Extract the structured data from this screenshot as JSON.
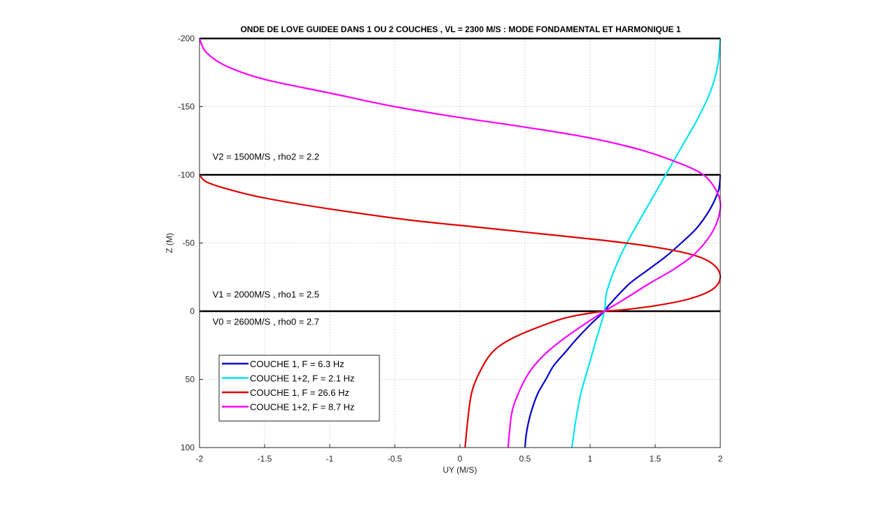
{
  "chart_data": {
    "type": "line",
    "title": "ONDE DE LOVE GUIDEE DANS 1 OU 2 COUCHES , VL =  2300 M/S : MODE FONDAMENTAL ET HARMONIQUE 1",
    "xlabel": "UY (M/S)",
    "ylabel": "Z (M)",
    "xlim": [
      -2,
      2
    ],
    "ylim": [
      -200,
      100
    ],
    "y_reversed": true,
    "grid": true,
    "xticks": [
      -2,
      -1.5,
      -1,
      -0.5,
      0,
      0.5,
      1,
      1.5,
      2
    ],
    "xtick_labels": [
      "-2",
      "-1.5",
      "-1",
      "-0.5",
      "0",
      "0.5",
      "1",
      "1.5",
      "2"
    ],
    "yticks": [
      -200,
      -150,
      -100,
      -50,
      0,
      50,
      100
    ],
    "ytick_labels": [
      "-200",
      "-150",
      "-100",
      "-50",
      "0",
      "50",
      "100"
    ],
    "layer_lines": [
      -200,
      -100,
      0
    ],
    "annotations": [
      {
        "text": "V2 = 1500M/S , rho2 = 2.2",
        "x": -1.9,
        "y": -111
      },
      {
        "text": "V1 = 2000M/S , rho1 = 2.5",
        "x": -1.9,
        "y": -10
      },
      {
        "text": "V0 =  2600M/S , rho0 = 2.7",
        "x": -1.9,
        "y": 10
      }
    ],
    "legend_position": "bottom-left",
    "series": [
      {
        "name": "COUCHE 1,  F = 6.3 Hz",
        "color": "#0000d0",
        "points": [
          [
            2.0,
            -100
          ],
          [
            1.99,
            -90
          ],
          [
            1.95,
            -80
          ],
          [
            1.89,
            -70
          ],
          [
            1.81,
            -60
          ],
          [
            1.7,
            -50
          ],
          [
            1.58,
            -40
          ],
          [
            1.44,
            -30
          ],
          [
            1.3,
            -20
          ],
          [
            1.15,
            -5
          ],
          [
            1.11,
            0
          ],
          [
            1.0,
            10
          ],
          [
            0.9,
            20
          ],
          [
            0.81,
            30
          ],
          [
            0.72,
            40
          ],
          [
            0.66,
            50
          ],
          [
            0.6,
            60
          ],
          [
            0.56,
            70
          ],
          [
            0.53,
            80
          ],
          [
            0.51,
            90
          ],
          [
            0.5,
            100
          ]
        ]
      },
      {
        "name": "COUCHE 1+2,  F = 2.1 Hz",
        "color": "#00e5ee",
        "points": [
          [
            2.0,
            -200
          ],
          [
            1.98,
            -180
          ],
          [
            1.92,
            -160
          ],
          [
            1.82,
            -140
          ],
          [
            1.7,
            -120
          ],
          [
            1.58,
            -100
          ],
          [
            1.46,
            -80
          ],
          [
            1.34,
            -60
          ],
          [
            1.23,
            -40
          ],
          [
            1.13,
            -15
          ],
          [
            1.11,
            0
          ],
          [
            1.05,
            20
          ],
          [
            0.99,
            40
          ],
          [
            0.93,
            60
          ],
          [
            0.89,
            80
          ],
          [
            0.86,
            100
          ]
        ]
      },
      {
        "name": "COUCHE 1, F = 26.6 Hz",
        "color": "#e00000",
        "points": [
          [
            -2.0,
            -100
          ],
          [
            -1.95,
            -95
          ],
          [
            -1.8,
            -90
          ],
          [
            -1.5,
            -83
          ],
          [
            -1.0,
            -75
          ],
          [
            -0.4,
            -67
          ],
          [
            0.1,
            -62
          ],
          [
            0.6,
            -57
          ],
          [
            1.1,
            -52
          ],
          [
            1.5,
            -47
          ],
          [
            1.8,
            -41
          ],
          [
            1.95,
            -34
          ],
          [
            2.0,
            -25
          ],
          [
            1.94,
            -16
          ],
          [
            1.76,
            -9
          ],
          [
            1.5,
            -4
          ],
          [
            1.25,
            -1
          ],
          [
            1.11,
            0
          ],
          [
            0.85,
            4
          ],
          [
            0.65,
            10
          ],
          [
            0.4,
            20
          ],
          [
            0.25,
            30
          ],
          [
            0.15,
            45
          ],
          [
            0.09,
            60
          ],
          [
            0.06,
            80
          ],
          [
            0.04,
            100
          ]
        ]
      },
      {
        "name": "COUCHE 1+2,  F = 8.7 Hz",
        "color": "#ff00ff",
        "points": [
          [
            -2.0,
            -200
          ],
          [
            -1.95,
            -190
          ],
          [
            -1.8,
            -180
          ],
          [
            -1.5,
            -170
          ],
          [
            -1.0,
            -160
          ],
          [
            -0.5,
            -150
          ],
          [
            0.0,
            -142
          ],
          [
            0.5,
            -135
          ],
          [
            1.0,
            -127
          ],
          [
            1.4,
            -118
          ],
          [
            1.7,
            -108
          ],
          [
            1.87,
            -100
          ],
          [
            1.96,
            -90
          ],
          [
            2.0,
            -80
          ],
          [
            1.99,
            -70
          ],
          [
            1.95,
            -60
          ],
          [
            1.88,
            -50
          ],
          [
            1.78,
            -40
          ],
          [
            1.63,
            -30
          ],
          [
            1.45,
            -20
          ],
          [
            1.25,
            -8
          ],
          [
            1.11,
            0
          ],
          [
            0.95,
            10
          ],
          [
            0.8,
            20
          ],
          [
            0.67,
            30
          ],
          [
            0.57,
            40
          ],
          [
            0.5,
            50
          ],
          [
            0.45,
            60
          ],
          [
            0.41,
            70
          ],
          [
            0.39,
            80
          ],
          [
            0.37,
            100
          ]
        ]
      }
    ]
  }
}
